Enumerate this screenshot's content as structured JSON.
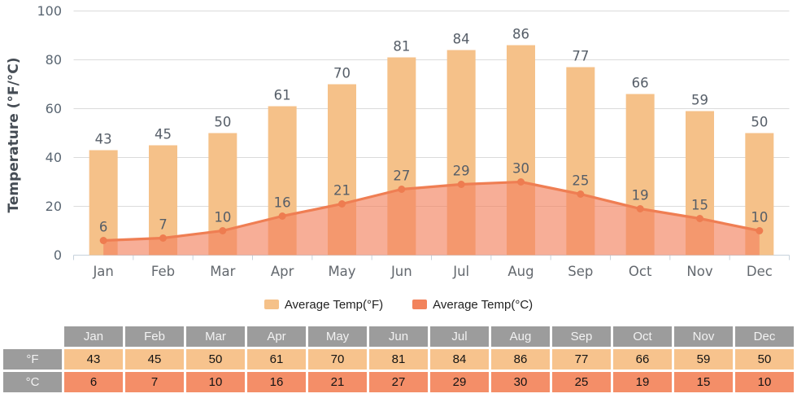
{
  "chart_data": {
    "type": "combo-bar-line",
    "categories": [
      "Jan",
      "Feb",
      "Mar",
      "Apr",
      "May",
      "Jun",
      "Jul",
      "Aug",
      "Sep",
      "Oct",
      "Nov",
      "Dec"
    ],
    "series": [
      {
        "name": "Average Temp(°F)",
        "type": "bar",
        "values": [
          43,
          45,
          50,
          61,
          70,
          81,
          84,
          86,
          77,
          66,
          59,
          50
        ],
        "color": "#F5C189"
      },
      {
        "name": "Average Temp(°C)",
        "type": "line-area",
        "values": [
          6,
          7,
          10,
          16,
          21,
          27,
          29,
          30,
          25,
          19,
          15,
          10
        ],
        "color": "#EF7E53",
        "marker_color": "#EE7C50",
        "area_color": "rgba(242,130,95,0.65)"
      }
    ],
    "title": "",
    "xlabel": "",
    "ylabel": "Temperature (°F/°C)",
    "ylim": [
      0,
      100
    ],
    "yticks": [
      0,
      20,
      40,
      60,
      80,
      100
    ],
    "grid": true,
    "legend_position": "bottom"
  },
  "legend": {
    "items": [
      {
        "label": "Average Temp(°F)",
        "color": "#F5C189"
      },
      {
        "label": "Average Temp(°C)",
        "color": "#F2835C"
      }
    ]
  },
  "table": {
    "corner_label": "",
    "columns": [
      "Jan",
      "Feb",
      "Mar",
      "Apr",
      "May",
      "Jun",
      "Jul",
      "Aug",
      "Sep",
      "Oct",
      "Nov",
      "Dec"
    ],
    "rows": [
      {
        "label": "°F",
        "bg": "#F7C38D",
        "values": [
          43,
          45,
          50,
          61,
          70,
          81,
          84,
          86,
          77,
          66,
          59,
          50
        ]
      },
      {
        "label": "°C",
        "bg": "#F48E68",
        "values": [
          6,
          7,
          10,
          16,
          21,
          27,
          29,
          30,
          25,
          19,
          15,
          10
        ]
      }
    ],
    "header_bg": "#9C9C9C"
  },
  "colors": {
    "grid_line": "#DBDBDB",
    "axis_line": "#C7D2DC",
    "tick_label": "#5A6672",
    "month_label": "#63686E",
    "value_label": "#565E68",
    "axis_title": "#454C54"
  }
}
